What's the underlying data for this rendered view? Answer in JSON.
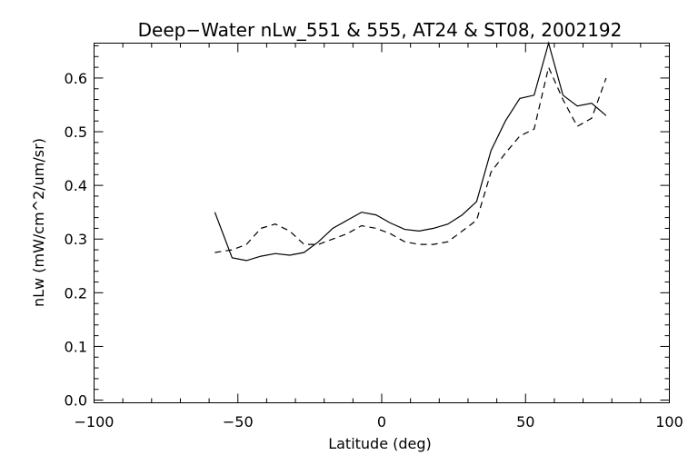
{
  "chart_data": {
    "type": "line",
    "title": "Deep−Water nLw_551 & 555, AT24 & ST08, 2002192",
    "xlabel": "Latitude (deg)",
    "ylabel": "nLw (mW/cm^2/um/sr)",
    "xlim": [
      -100,
      100
    ],
    "ylim": [
      -0.005,
      0.665
    ],
    "grid": false,
    "legend": "none",
    "x_ticks": [
      -100,
      -50,
      0,
      50,
      100
    ],
    "x_tick_labels": [
      "−100",
      "−50",
      "0",
      "50",
      "100"
    ],
    "y_ticks": [
      0.0,
      0.1,
      0.2,
      0.3,
      0.4,
      0.5,
      0.6
    ],
    "y_tick_labels": [
      "0.0",
      "0.1",
      "0.2",
      "0.3",
      "0.4",
      "0.5",
      "0.6"
    ],
    "series": [
      {
        "style": "solid",
        "color": "#000000",
        "x": [
          -58,
          -52,
          -47,
          -42,
          -37,
          -32,
          -27,
          -22,
          -17,
          -12,
          -7,
          -2,
          3,
          8,
          13,
          18,
          23,
          28,
          33,
          38,
          43,
          48,
          53,
          58,
          63,
          68,
          73,
          78
        ],
        "y": [
          0.35,
          0.265,
          0.26,
          0.268,
          0.273,
          0.27,
          0.275,
          0.295,
          0.32,
          0.335,
          0.35,
          0.345,
          0.33,
          0.318,
          0.315,
          0.32,
          0.328,
          0.345,
          0.37,
          0.465,
          0.52,
          0.562,
          0.568,
          0.665,
          0.568,
          0.548,
          0.553,
          0.53
        ]
      },
      {
        "style": "dashed",
        "color": "#000000",
        "x": [
          -58,
          -52,
          -47,
          -42,
          -37,
          -32,
          -27,
          -22,
          -17,
          -12,
          -7,
          -2,
          3,
          8,
          13,
          18,
          23,
          28,
          33,
          38,
          43,
          48,
          53,
          58,
          63,
          68,
          73,
          78
        ],
        "y": [
          0.275,
          0.28,
          0.29,
          0.32,
          0.328,
          0.315,
          0.29,
          0.29,
          0.3,
          0.31,
          0.325,
          0.32,
          0.31,
          0.295,
          0.29,
          0.29,
          0.295,
          0.315,
          0.335,
          0.425,
          0.46,
          0.492,
          0.505,
          0.62,
          0.56,
          0.51,
          0.525,
          0.6
        ]
      }
    ]
  }
}
